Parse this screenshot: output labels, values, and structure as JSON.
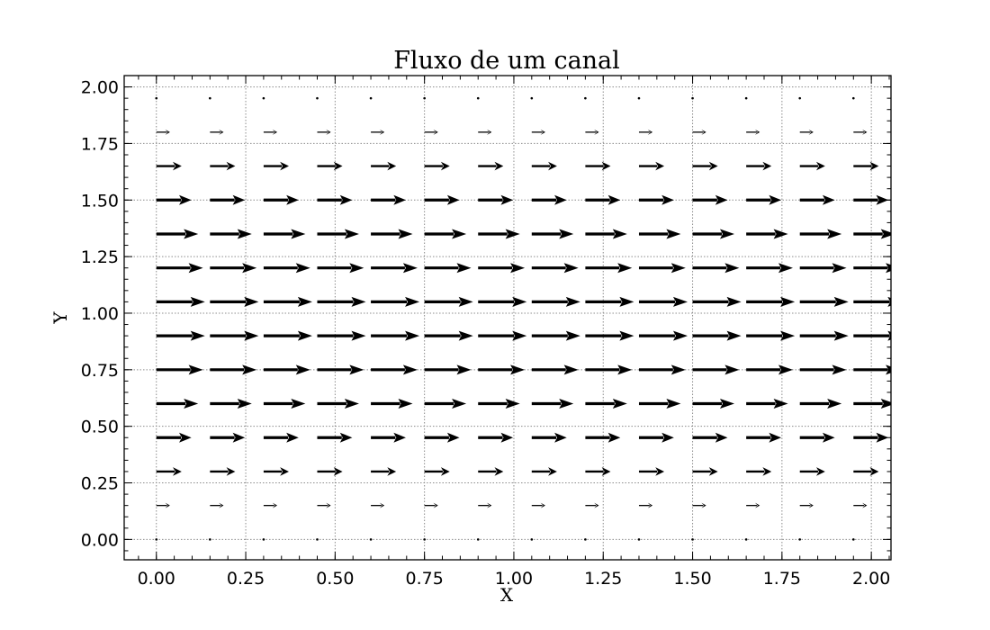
{
  "chart_data": {
    "type": "quiver",
    "title": "Fluxo de um canal",
    "xlabel": "X",
    "ylabel": "Y",
    "xlim": [
      -0.09,
      2.055
    ],
    "ylim": [
      -0.09,
      2.05
    ],
    "xticks": [
      0.0,
      0.25,
      0.5,
      0.75,
      1.0,
      1.25,
      1.5,
      1.75,
      2.0
    ],
    "yticks": [
      0.0,
      0.25,
      0.5,
      0.75,
      1.0,
      1.25,
      1.5,
      1.75,
      2.0
    ],
    "xtick_labels": [
      "0.00",
      "0.25",
      "0.50",
      "0.75",
      "1.00",
      "1.25",
      "1.50",
      "1.75",
      "2.00"
    ],
    "ytick_labels": [
      "0.00",
      "0.25",
      "0.50",
      "0.75",
      "1.00",
      "1.25",
      "1.50",
      "1.75",
      "2.00"
    ],
    "grid": true,
    "x": [
      0.0,
      0.15,
      0.3,
      0.45,
      0.6,
      0.75,
      0.9,
      1.05,
      1.2,
      1.35,
      1.5,
      1.65,
      1.8,
      1.95
    ],
    "y": [
      0.0,
      0.15,
      0.3,
      0.45,
      0.6,
      0.75,
      0.9,
      1.05,
      1.2,
      1.35,
      1.5,
      1.65,
      1.8,
      1.95
    ],
    "u": [
      0.0,
      0.28,
      0.52,
      0.72,
      0.86,
      0.96,
      1.0,
      1.0,
      0.96,
      0.86,
      0.72,
      0.52,
      0.28,
      0.0
    ],
    "v": 0.0,
    "arrow_color": "#000000"
  }
}
